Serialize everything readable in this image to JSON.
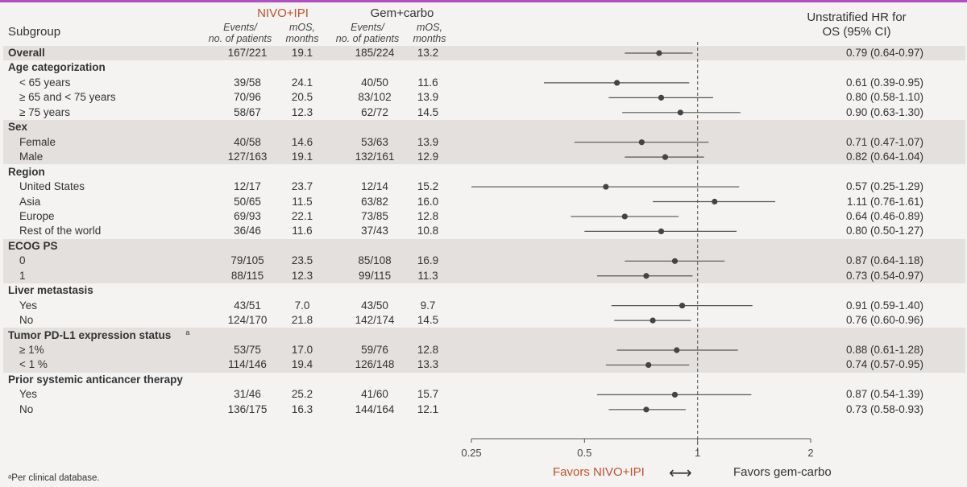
{
  "header": {
    "subgroup": "Subgroup",
    "arm1_name": "NIVO+IPI",
    "arm2_name": "Gem+carbo",
    "events_label_1": "Events/",
    "events_label_2": "no. of patients",
    "mos_label_1": "mOS,",
    "mos_label_2": "months",
    "hr_title_1": "Unstratified HR for",
    "hr_title_2": "OS (95% CI)"
  },
  "colors": {
    "arm1": "#c0522d",
    "accent_line": "#b14fc0",
    "band": "#e4e0dd",
    "ink": "#555555"
  },
  "chart_data": {
    "type": "forest",
    "x_scale": "log",
    "xlim": [
      0.25,
      2
    ],
    "xticks": [
      "0.25",
      "0.5",
      "1",
      "2"
    ],
    "reference_line": 1,
    "favors_left": "Favors NIVO+IPI",
    "favors_arrow": "⟷",
    "favors_right": "Favors gem-carbo",
    "rows": [
      {
        "label": "Overall",
        "kind": "cat",
        "band": true,
        "ev1": "167/221",
        "mos1": "19.1",
        "ev2": "185/224",
        "mos2": "13.2",
        "hr": 0.79,
        "lo": 0.64,
        "hi": 0.97,
        "hr_text": "0.79 (0.64-0.97)"
      },
      {
        "label": "Age categorization",
        "kind": "cat",
        "band": false
      },
      {
        "label": "< 65 years",
        "kind": "sub",
        "band": false,
        "ev1": "39/58",
        "mos1": "24.1",
        "ev2": "40/50",
        "mos2": "11.6",
        "hr": 0.61,
        "lo": 0.39,
        "hi": 0.95,
        "hr_text": "0.61 (0.39-0.95)"
      },
      {
        "label": "≥ 65 and < 75 years",
        "kind": "sub",
        "band": false,
        "ev1": "70/96",
        "mos1": "20.5",
        "ev2": "83/102",
        "mos2": "13.9",
        "hr": 0.8,
        "lo": 0.58,
        "hi": 1.1,
        "hr_text": "0.80 (0.58-1.10)"
      },
      {
        "label": "≥ 75 years",
        "kind": "sub",
        "band": false,
        "ev1": "58/67",
        "mos1": "12.3",
        "ev2": "62/72",
        "mos2": "14.5",
        "hr": 0.9,
        "lo": 0.63,
        "hi": 1.3,
        "hr_text": "0.90 (0.63-1.30)"
      },
      {
        "label": "Sex",
        "kind": "cat",
        "band": true
      },
      {
        "label": "Female",
        "kind": "sub",
        "band": true,
        "ev1": "40/58",
        "mos1": "14.6",
        "ev2": "53/63",
        "mos2": "13.9",
        "hr": 0.71,
        "lo": 0.47,
        "hi": 1.07,
        "hr_text": "0.71 (0.47-1.07)"
      },
      {
        "label": "Male",
        "kind": "sub",
        "band": true,
        "ev1": "127/163",
        "mos1": "19.1",
        "ev2": "132/161",
        "mos2": "12.9",
        "hr": 0.82,
        "lo": 0.64,
        "hi": 1.04,
        "hr_text": "0.82 (0.64-1.04)"
      },
      {
        "label": "Region",
        "kind": "cat",
        "band": false
      },
      {
        "label": "United States",
        "kind": "sub",
        "band": false,
        "ev1": "12/17",
        "mos1": "23.7",
        "ev2": "12/14",
        "mos2": "15.2",
        "hr": 0.57,
        "lo": 0.25,
        "hi": 1.29,
        "hr_text": "0.57 (0.25-1.29)"
      },
      {
        "label": "Asia",
        "kind": "sub",
        "band": false,
        "ev1": "50/65",
        "mos1": "11.5",
        "ev2": "63/82",
        "mos2": "16.0",
        "hr": 1.11,
        "lo": 0.76,
        "hi": 1.61,
        "hr_text": "1.11 (0.76-1.61)"
      },
      {
        "label": "Europe",
        "kind": "sub",
        "band": false,
        "ev1": "69/93",
        "mos1": "22.1",
        "ev2": "73/85",
        "mos2": "12.8",
        "hr": 0.64,
        "lo": 0.46,
        "hi": 0.89,
        "hr_text": "0.64 (0.46-0.89)"
      },
      {
        "label": "Rest of the world",
        "kind": "sub",
        "band": false,
        "ev1": "36/46",
        "mos1": "11.6",
        "ev2": "37/43",
        "mos2": "10.8",
        "hr": 0.8,
        "lo": 0.5,
        "hi": 1.27,
        "hr_text": "0.80 (0.50-1.27)"
      },
      {
        "label": "ECOG PS",
        "kind": "cat",
        "band": true
      },
      {
        "label": "0",
        "kind": "sub",
        "band": true,
        "ev1": "79/105",
        "mos1": "23.5",
        "ev2": "85/108",
        "mos2": "16.9",
        "hr": 0.87,
        "lo": 0.64,
        "hi": 1.18,
        "hr_text": "0.87 (0.64-1.18)"
      },
      {
        "label": "1",
        "kind": "sub",
        "band": true,
        "ev1": "88/115",
        "mos1": "12.3",
        "ev2": "99/115",
        "mos2": "11.3",
        "hr": 0.73,
        "lo": 0.54,
        "hi": 0.97,
        "hr_text": "0.73 (0.54-0.97)"
      },
      {
        "label": "Liver metastasis",
        "kind": "cat",
        "band": false
      },
      {
        "label": "Yes",
        "kind": "sub",
        "band": false,
        "ev1": "43/51",
        "mos1": "7.0",
        "ev2": "43/50",
        "mos2": "9.7",
        "hr": 0.91,
        "lo": 0.59,
        "hi": 1.4,
        "hr_text": "0.91 (0.59-1.40)"
      },
      {
        "label": "No",
        "kind": "sub",
        "band": false,
        "ev1": "124/170",
        "mos1": "21.8",
        "ev2": "142/174",
        "mos2": "14.5",
        "hr": 0.76,
        "lo": 0.6,
        "hi": 0.96,
        "hr_text": "0.76 (0.60-0.96)"
      },
      {
        "label": "Tumor PD-L1 expression status",
        "sup": "a",
        "kind": "cat",
        "band": true
      },
      {
        "label": "≥ 1%",
        "kind": "sub",
        "band": true,
        "ev1": "53/75",
        "mos1": "17.0",
        "ev2": "59/76",
        "mos2": "12.8",
        "hr": 0.88,
        "lo": 0.61,
        "hi": 1.28,
        "hr_text": "0.88 (0.61-1.28)"
      },
      {
        "label": "< 1 %",
        "kind": "sub",
        "band": true,
        "ev1": "114/146",
        "mos1": "19.4",
        "ev2": "126/148",
        "mos2": "13.3",
        "hr": 0.74,
        "lo": 0.57,
        "hi": 0.95,
        "hr_text": "0.74 (0.57-0.95)"
      },
      {
        "label": "Prior systemic anticancer therapy",
        "kind": "cat",
        "band": false
      },
      {
        "label": "Yes",
        "kind": "sub",
        "band": false,
        "ev1": "31/46",
        "mos1": "25.2",
        "ev2": "41/60",
        "mos2": "15.7",
        "hr": 0.87,
        "lo": 0.54,
        "hi": 1.39,
        "hr_text": "0.87 (0.54-1.39)"
      },
      {
        "label": "No",
        "kind": "sub",
        "band": false,
        "ev1": "136/175",
        "mos1": "16.3",
        "ev2": "144/164",
        "mos2": "12.1",
        "hr": 0.73,
        "lo": 0.58,
        "hi": 0.93,
        "hr_text": "0.73 (0.58-0.93)"
      }
    ]
  },
  "footnote": "ᵃPer clinical database."
}
